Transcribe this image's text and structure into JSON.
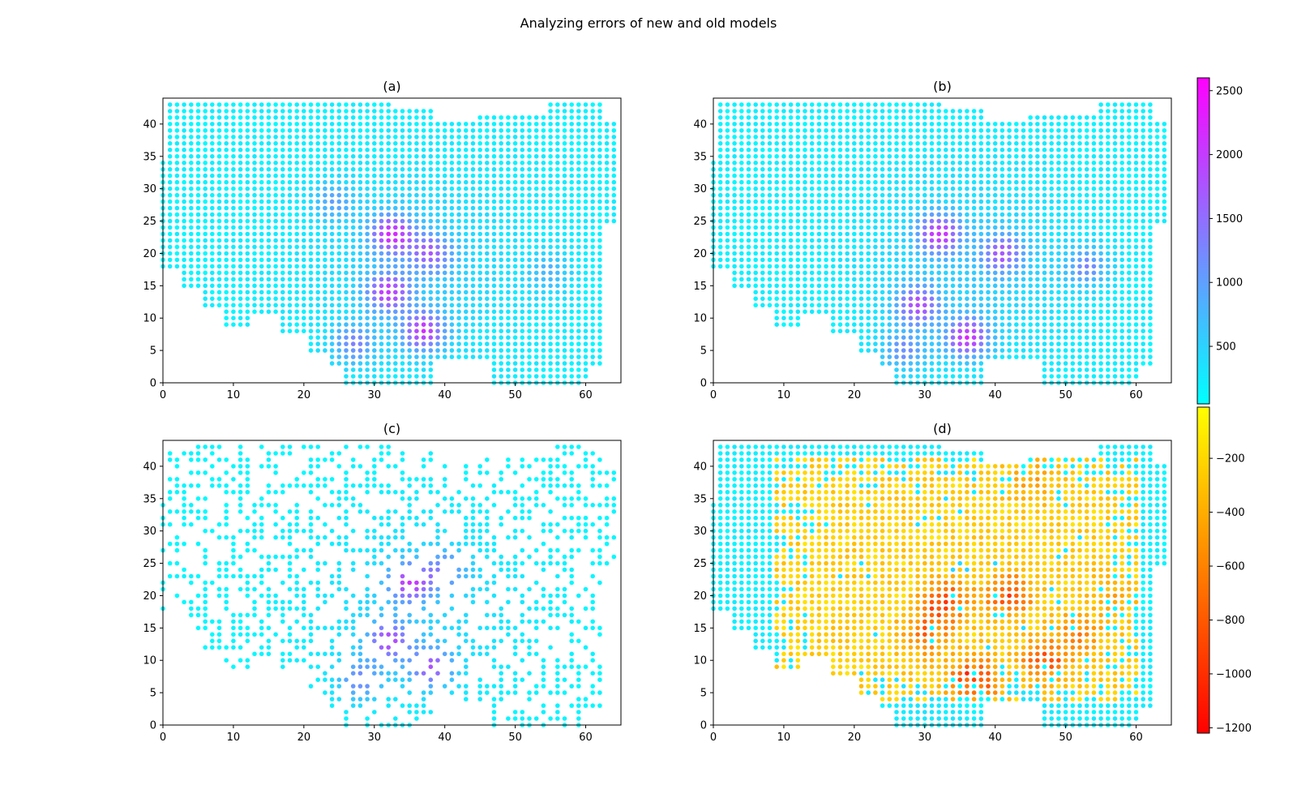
{
  "figure": {
    "title": "Analyzing errors of new and old models"
  },
  "colorbars": [
    {
      "name": "cool",
      "stops": [
        "#00ffff",
        "#ff00ff"
      ],
      "range": [
        50,
        2600
      ],
      "ticks": [
        500,
        1000,
        1500,
        2000,
        2500
      ],
      "tick_labels": [
        "500",
        "1000",
        "1500",
        "2000",
        "2500"
      ]
    },
    {
      "name": "autumn",
      "stops": [
        "#ff0000",
        "#ffff00"
      ],
      "range": [
        -1220,
        -10
      ],
      "ticks": [
        -200,
        -400,
        -600,
        -800,
        -1000,
        -1200
      ],
      "tick_labels": [
        "−200",
        "−400",
        "−600",
        "−800",
        "−1000",
        "−1200"
      ]
    }
  ],
  "chart_data": [
    {
      "type": "scatter",
      "panel": "a",
      "title": "(a)",
      "xlim": [
        0,
        65
      ],
      "ylim": [
        0,
        44
      ],
      "xticks": [
        0,
        10,
        20,
        30,
        40,
        50,
        60
      ],
      "yticks": [
        0,
        5,
        10,
        15,
        20,
        25,
        30,
        35,
        40
      ],
      "xtick_labels": [
        "0",
        "10",
        "20",
        "30",
        "40",
        "50",
        "60"
      ],
      "ytick_labels": [
        "0",
        "5",
        "10",
        "15",
        "20",
        "25",
        "30",
        "35",
        "40"
      ],
      "grid": false,
      "colormap": "cool",
      "coverage": "dense grid of points x 1-64, y 0-43 covering US shape",
      "hotspots": [
        {
          "x": 32.5,
          "y": 23,
          "value": 2100
        },
        {
          "x": 32,
          "y": 14,
          "value": 1900
        },
        {
          "x": 37,
          "y": 8,
          "value": 2000
        },
        {
          "x": 38,
          "y": 20,
          "value": 1500
        },
        {
          "x": 27,
          "y": 6,
          "value": 1300
        },
        {
          "x": 24,
          "y": 28,
          "value": 1000
        },
        {
          "x": 55,
          "y": 17,
          "value": 900
        }
      ]
    },
    {
      "type": "scatter",
      "panel": "b",
      "title": "(b)",
      "xlim": [
        0,
        65
      ],
      "ylim": [
        0,
        44
      ],
      "xticks": [
        0,
        10,
        20,
        30,
        40,
        50,
        60
      ],
      "yticks": [
        0,
        5,
        10,
        15,
        20,
        25,
        30,
        35,
        40
      ],
      "xtick_labels": [
        "0",
        "10",
        "20",
        "30",
        "40",
        "50",
        "60"
      ],
      "ytick_labels": [
        "0",
        "5",
        "10",
        "15",
        "20",
        "25",
        "30",
        "35",
        "40"
      ],
      "grid": false,
      "colormap": "cool",
      "coverage": "dense grid of points x 0-64, y 0-43 covering US shape",
      "hotspots": [
        {
          "x": 32,
          "y": 23,
          "value": 2000
        },
        {
          "x": 29,
          "y": 12,
          "value": 1800
        },
        {
          "x": 36,
          "y": 7,
          "value": 2100
        },
        {
          "x": 41,
          "y": 20,
          "value": 1600
        },
        {
          "x": 27,
          "y": 5,
          "value": 1200
        },
        {
          "x": 53,
          "y": 18,
          "value": 1300
        }
      ]
    },
    {
      "type": "scatter",
      "panel": "c",
      "title": "(c)",
      "xlim": [
        0,
        65
      ],
      "ylim": [
        0,
        44
      ],
      "xticks": [
        0,
        10,
        20,
        30,
        40,
        50,
        60
      ],
      "yticks": [
        0,
        5,
        10,
        15,
        20,
        25,
        30,
        35,
        40
      ],
      "xtick_labels": [
        "0",
        "10",
        "20",
        "30",
        "40",
        "50",
        "60"
      ],
      "ytick_labels": [
        "0",
        "5",
        "10",
        "15",
        "20",
        "25",
        "30",
        "35",
        "40"
      ],
      "grid": false,
      "colormap": "cool",
      "coverage": "sparse subset (about half) of the grid points",
      "hotspots": [
        {
          "x": 35,
          "y": 22,
          "value": 1900
        },
        {
          "x": 32,
          "y": 13,
          "value": 1800
        },
        {
          "x": 38,
          "y": 9,
          "value": 1700
        },
        {
          "x": 28,
          "y": 7,
          "value": 1300
        },
        {
          "x": 40,
          "y": 24,
          "value": 1200
        }
      ]
    },
    {
      "type": "scatter",
      "panel": "d",
      "title": "(d)",
      "xlim": [
        0,
        65
      ],
      "ylim": [
        0,
        44
      ],
      "xticks": [
        0,
        10,
        20,
        30,
        40,
        50,
        60
      ],
      "yticks": [
        0,
        5,
        10,
        15,
        20,
        25,
        30,
        35,
        40
      ],
      "xtick_labels": [
        "0",
        "10",
        "20",
        "30",
        "40",
        "50",
        "60"
      ],
      "ytick_labels": [
        "0",
        "5",
        "10",
        "15",
        "20",
        "25",
        "30",
        "35",
        "40"
      ],
      "grid": false,
      "colormap": "autumn (negative errors) over cool (remaining points)",
      "coverage": "dense grid of points; central and eastern region colored by negative error",
      "hotspots": [
        {
          "x": 37,
          "y": 7,
          "value": -1100
        },
        {
          "x": 33,
          "y": 19,
          "value": -900
        },
        {
          "x": 42,
          "y": 20,
          "value": -850
        },
        {
          "x": 47,
          "y": 10,
          "value": -800
        },
        {
          "x": 52,
          "y": 14,
          "value": -600
        },
        {
          "x": 30,
          "y": 14,
          "value": -650
        },
        {
          "x": 45,
          "y": 38,
          "value": -450
        },
        {
          "x": 57,
          "y": 20,
          "value": -400
        }
      ]
    }
  ]
}
